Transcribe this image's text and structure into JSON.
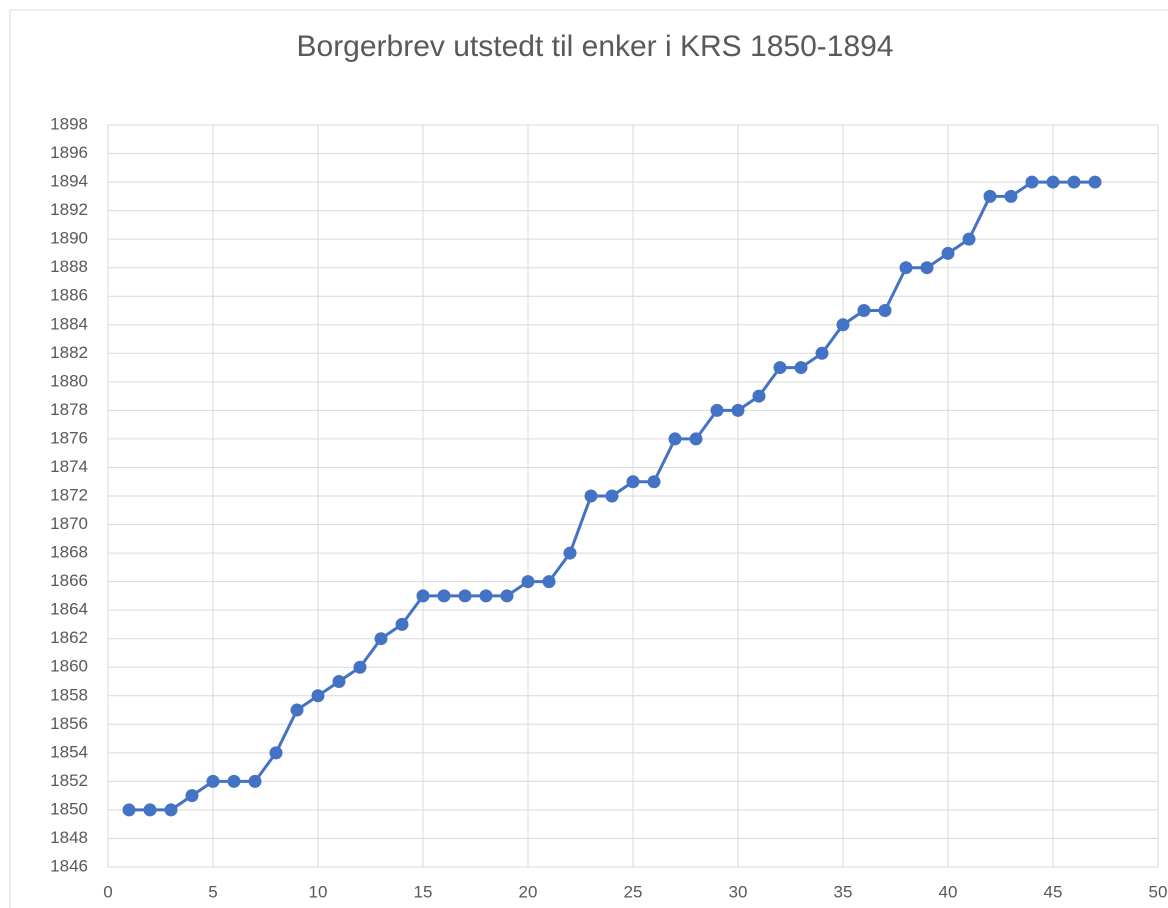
{
  "chart_data": {
    "type": "line",
    "title": "Borgerbrev utstedt til enker i KRS 1850-1894",
    "x": [
      1,
      2,
      3,
      4,
      5,
      6,
      7,
      8,
      9,
      10,
      11,
      12,
      13,
      14,
      15,
      16,
      17,
      18,
      19,
      20,
      21,
      22,
      23,
      24,
      25,
      26,
      27,
      28,
      29,
      30,
      31,
      32,
      33,
      34,
      35,
      36,
      37,
      38,
      39,
      40,
      41,
      42,
      43,
      44,
      45,
      46,
      47
    ],
    "values": [
      1850,
      1850,
      1850,
      1851,
      1852,
      1852,
      1852,
      1854,
      1857,
      1858,
      1859,
      1860,
      1862,
      1863,
      1865,
      1865,
      1865,
      1865,
      1865,
      1866,
      1866,
      1868,
      1872,
      1872,
      1873,
      1873,
      1876,
      1876,
      1878,
      1878,
      1879,
      1881,
      1881,
      1882,
      1884,
      1885,
      1885,
      1888,
      1888,
      1889,
      1890,
      1893,
      1893,
      1894,
      1894,
      1894,
      1894
    ],
    "color": "#4472c4",
    "xlim": [
      0,
      50
    ],
    "xticks": [
      0,
      5,
      10,
      15,
      20,
      25,
      30,
      35,
      40,
      45,
      50
    ],
    "ylim": [
      1846,
      1898
    ],
    "yticks": [
      1846,
      1848,
      1850,
      1852,
      1854,
      1856,
      1858,
      1860,
      1862,
      1864,
      1866,
      1868,
      1870,
      1872,
      1874,
      1876,
      1878,
      1880,
      1882,
      1884,
      1886,
      1888,
      1890,
      1892,
      1894,
      1896,
      1898
    ],
    "grid": true
  }
}
